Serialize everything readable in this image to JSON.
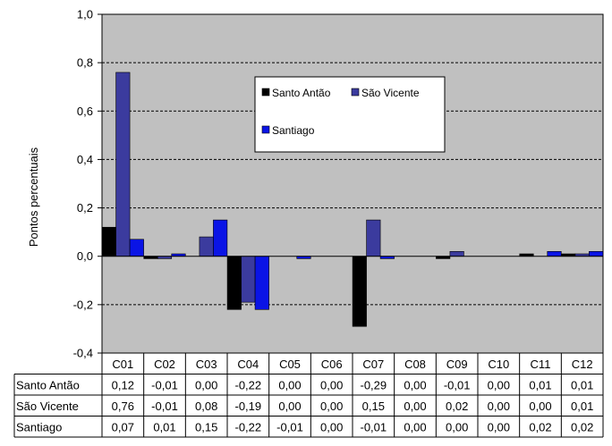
{
  "chart_data": {
    "type": "bar",
    "title": "",
    "xlabel": "",
    "ylabel": "Pontos percentuais",
    "ylim": [
      -0.4,
      1.0
    ],
    "yticks": [
      -0.4,
      -0.2,
      0.0,
      0.2,
      0.4,
      0.6,
      0.8,
      1.0
    ],
    "ytick_labels": [
      "-0,4",
      "-0,2",
      "0,0",
      "0,2",
      "0,4",
      "0,6",
      "0,8",
      "1,0"
    ],
    "grid": "horizontal dashed",
    "legend_position": "top-right (inside plot)",
    "plot_background": "#c0c0c0",
    "categories": [
      "C01",
      "C02",
      "C03",
      "C04",
      "C05",
      "C06",
      "C07",
      "C08",
      "C09",
      "C10",
      "C11",
      "C12"
    ],
    "series": [
      {
        "name": "Santo Antão",
        "color": "#000000",
        "values": [
          0.12,
          -0.01,
          0.0,
          -0.22,
          0.0,
          0.0,
          -0.29,
          0.0,
          -0.01,
          0.0,
          0.01,
          0.01
        ],
        "labels": [
          "0,12",
          "-0,01",
          "0,00",
          "-0,22",
          "0,00",
          "0,00",
          "-0,29",
          "0,00",
          "-0,01",
          "0,00",
          "0,01",
          "0,01"
        ]
      },
      {
        "name": "São Vicente",
        "color": "#3b3b9e",
        "values": [
          0.76,
          -0.01,
          0.08,
          -0.19,
          0.0,
          0.0,
          0.15,
          0.0,
          0.02,
          0.0,
          0.0,
          0.01
        ],
        "labels": [
          "0,76",
          "-0,01",
          "0,08",
          "-0,19",
          "0,00",
          "0,00",
          "0,15",
          "0,00",
          "0,02",
          "0,00",
          "0,00",
          "0,01"
        ]
      },
      {
        "name": "Santiago",
        "color": "#0a14e6",
        "values": [
          0.07,
          0.01,
          0.15,
          -0.22,
          -0.01,
          0.0,
          -0.01,
          0.0,
          0.0,
          0.0,
          0.02,
          0.02
        ],
        "labels": [
          "0,07",
          "0,01",
          "0,15",
          "-0,22",
          "-0,01",
          "0,00",
          "-0,01",
          "0,00",
          "0,00",
          "0,00",
          "0,02",
          "0,02"
        ]
      }
    ]
  }
}
